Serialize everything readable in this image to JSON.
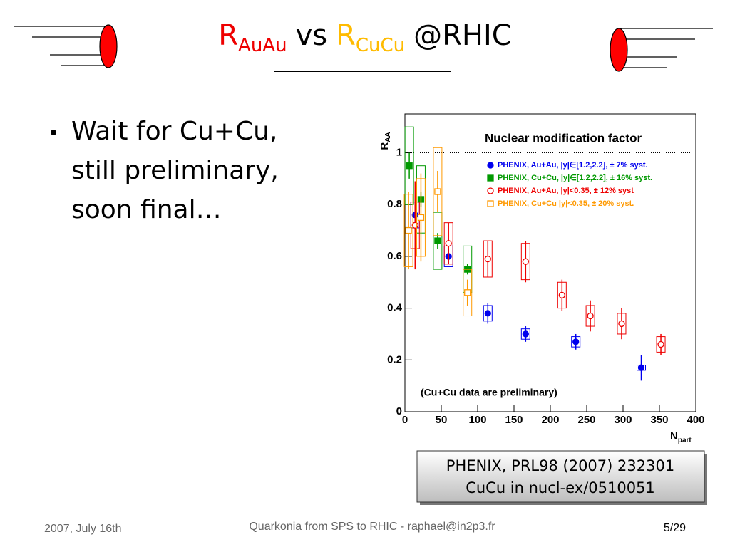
{
  "header": {
    "title": {
      "r1": "R",
      "sub1": "AuAu",
      "mid": "vs",
      "r2": "R",
      "sub2": "CuCu",
      "tail": "@RHIC"
    }
  },
  "bullet": {
    "lines": [
      "Wait for Cu+Cu,",
      "still preliminary,",
      "soon final…"
    ]
  },
  "reference": {
    "lines": [
      "PHENIX, PRL98 (2007) 232301",
      "CuCu in nucl-ex/0510051"
    ]
  },
  "footer": {
    "date": "2007, July 16th",
    "center": "Quarkonia from SPS to RHIC - raphael@in2p3.fr",
    "page": "5/29"
  },
  "chart_data": {
    "type": "scatter",
    "title": "Nuclear modification factor",
    "annotation": "(Cu+Cu data are preliminary)",
    "y_label": {
      "main": "R",
      "sub": "AA"
    },
    "x_label": {
      "main": "N",
      "sub": "part"
    },
    "xlim": [
      0,
      400
    ],
    "xticks": [
      0,
      50,
      100,
      150,
      200,
      250,
      300,
      350,
      400
    ],
    "ylim": [
      0,
      1.15
    ],
    "yticks": [
      0,
      0.2,
      0.4,
      0.6,
      0.8,
      1
    ],
    "reference_line": 1,
    "series": [
      {
        "name": "PHENIX, Au+Au, |y|∈[1.2,2.2], ± 7% syst.",
        "color": "#0000ee",
        "marker": "filled-circle",
        "x": [
          14,
          60,
          114,
          166,
          235,
          325
        ],
        "values": [
          0.76,
          0.6,
          0.38,
          0.3,
          0.27,
          0.17
        ],
        "errors": [
          0.05,
          0.03,
          0.04,
          0.03,
          0.03,
          0.05
        ],
        "syst": [
          0.05,
          0.04,
          0.03,
          0.02,
          0.02,
          0.01
        ]
      },
      {
        "name": "PHENIX, Cu+Cu, |y|∈[1.2,2.2], ± 16% syst.",
        "color": "#009900",
        "marker": "filled-square",
        "x": [
          6,
          22,
          45,
          86
        ],
        "values": [
          0.95,
          0.82,
          0.66,
          0.55
        ],
        "errors": [
          0.05,
          0.03,
          0.03,
          0.02
        ],
        "syst": [
          0.15,
          0.13,
          0.11,
          0.09
        ]
      },
      {
        "name": "PHENIX, Au+Au, |y|<0.35, ± 12% syst",
        "color": "#ee0000",
        "marker": "open-circle",
        "x": [
          14,
          60,
          114,
          166,
          216,
          255,
          298,
          352
        ],
        "values": [
          0.72,
          0.65,
          0.59,
          0.58,
          0.45,
          0.37,
          0.34,
          0.26
        ],
        "errors": [
          0.17,
          0.08,
          0.07,
          0.08,
          0.06,
          0.06,
          0.06,
          0.04
        ],
        "syst": [
          0.09,
          0.08,
          0.07,
          0.07,
          0.05,
          0.04,
          0.04,
          0.03
        ]
      },
      {
        "name": "PHENIX, Cu+Cu |y|<0.35, ± 20% syst.",
        "color": "#ff9900",
        "marker": "open-square",
        "x": [
          5,
          22,
          45,
          86
        ],
        "values": [
          0.7,
          0.75,
          0.85,
          0.46
        ],
        "errors": [
          0.15,
          0.17,
          0.08,
          0.05
        ],
        "syst": [
          0.14,
          0.15,
          0.17,
          0.09
        ]
      }
    ]
  }
}
